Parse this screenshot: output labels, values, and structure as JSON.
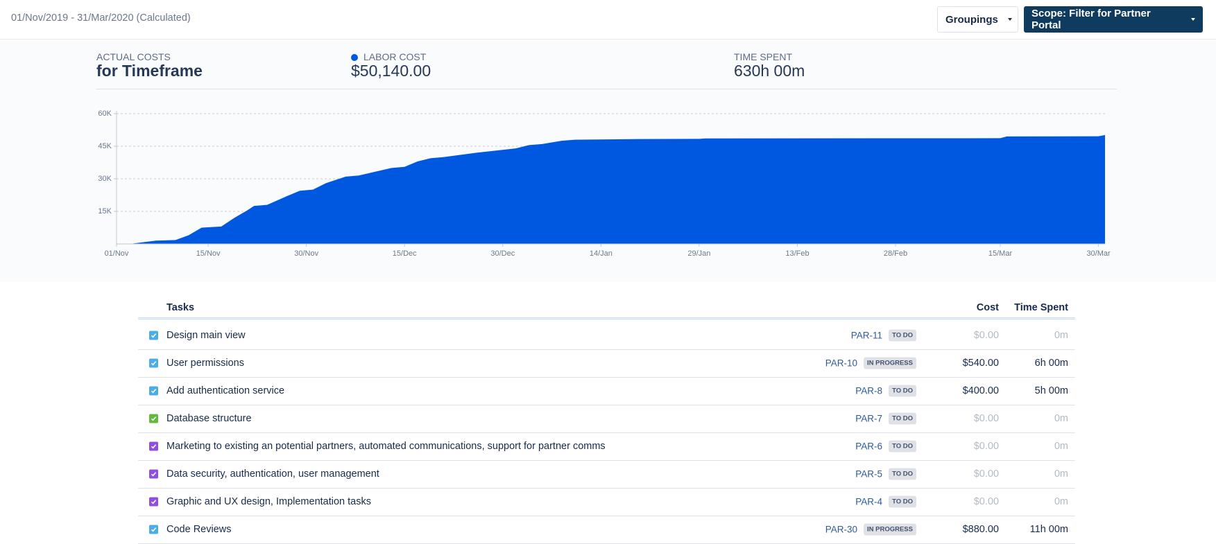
{
  "header": {
    "date_range": "01/Nov/2019 - 31/Mar/2020 (Calculated)",
    "groupings": "Groupings",
    "scope": "Scope: Filter for Partner Portal"
  },
  "summary": {
    "actual_costs_label": "ACTUAL COSTS",
    "actual_costs_title": "for Timeframe",
    "labor_cost_label": "LABOR COST",
    "labor_cost": "$50,140.00",
    "time_spent_label": "TIME SPENT",
    "time_spent": "630h 00m"
  },
  "chart_data": {
    "type": "area",
    "color": "#0058e0",
    "x": [
      "03/Nov",
      "07/Nov",
      "10/Nov",
      "12/Nov",
      "14/Nov",
      "17/Nov",
      "19/Nov",
      "21/Nov",
      "22/Nov",
      "24/Nov",
      "27/Nov",
      "29/Nov",
      "01/Dec",
      "03/Dec",
      "06/Dec",
      "08/Dec",
      "13/Dec",
      "15/Dec",
      "17/Dec",
      "19/Dec",
      "21/Dec",
      "26/Dec",
      "29/Dec",
      "01/Jan",
      "03/Jan",
      "05/Jan",
      "08/Jan",
      "10/Jan",
      "20/Jan",
      "29/Jan",
      "30/Jan",
      "15/Mar",
      "16/Mar",
      "30/Mar",
      "31/Mar"
    ],
    "values": [
      0,
      1500,
      1800,
      4000,
      7500,
      8000,
      12000,
      15500,
      17500,
      18000,
      22000,
      24500,
      25000,
      28000,
      31000,
      31500,
      35000,
      35500,
      38000,
      39500,
      40000,
      42000,
      43000,
      44000,
      45500,
      46000,
      47500,
      48000,
      48300,
      48400,
      48600,
      48700,
      49500,
      49600,
      50140
    ],
    "xlim": [
      "01/Nov",
      "31/Mar"
    ],
    "xticks": [
      "01/Nov",
      "15/Nov",
      "30/Nov",
      "15/Dec",
      "30/Dec",
      "14/Jan",
      "29/Jan",
      "13/Feb",
      "28/Feb",
      "15/Mar",
      "30/Mar"
    ],
    "ylim": [
      0,
      60000
    ],
    "yticks": [
      {
        "value": 15000,
        "label": "15K"
      },
      {
        "value": 30000,
        "label": "30K"
      },
      {
        "value": 45000,
        "label": "45K"
      },
      {
        "value": 60000,
        "label": "60K"
      }
    ],
    "grid": true
  },
  "table": {
    "columns": [
      "Tasks",
      "Cost",
      "Time Spent"
    ],
    "rows": [
      {
        "name": "Design main view",
        "key": "PAR-11",
        "status": "TO DO",
        "cost": "$0.00",
        "time": "0m",
        "icon_color": "#4bade8"
      },
      {
        "name": "User permissions",
        "key": "PAR-10",
        "status": "IN PROGRESS",
        "cost": "$540.00",
        "time": "6h 00m",
        "icon_color": "#4bade8"
      },
      {
        "name": "Add authentication service",
        "key": "PAR-8",
        "status": "TO DO",
        "cost": "$400.00",
        "time": "5h 00m",
        "icon_color": "#4bade8"
      },
      {
        "name": "Database structure",
        "key": "PAR-7",
        "status": "TO DO",
        "cost": "$0.00",
        "time": "0m",
        "icon_color": "#63ba3c"
      },
      {
        "name": "Marketing to existing an potential partners, automated communications, support for partner comms",
        "key": "PAR-6",
        "status": "TO DO",
        "cost": "$0.00",
        "time": "0m",
        "icon_color": "#904ee2"
      },
      {
        "name": "Data security, authentication, user management",
        "key": "PAR-5",
        "status": "TO DO",
        "cost": "$0.00",
        "time": "0m",
        "icon_color": "#904ee2"
      },
      {
        "name": "Graphic and UX design, Implementation tasks",
        "key": "PAR-4",
        "status": "TO DO",
        "cost": "$0.00",
        "time": "0m",
        "icon_color": "#904ee2"
      },
      {
        "name": "Code Reviews",
        "key": "PAR-30",
        "status": "IN PROGRESS",
        "cost": "$880.00",
        "time": "11h 00m",
        "icon_color": "#4bade8"
      }
    ]
  }
}
